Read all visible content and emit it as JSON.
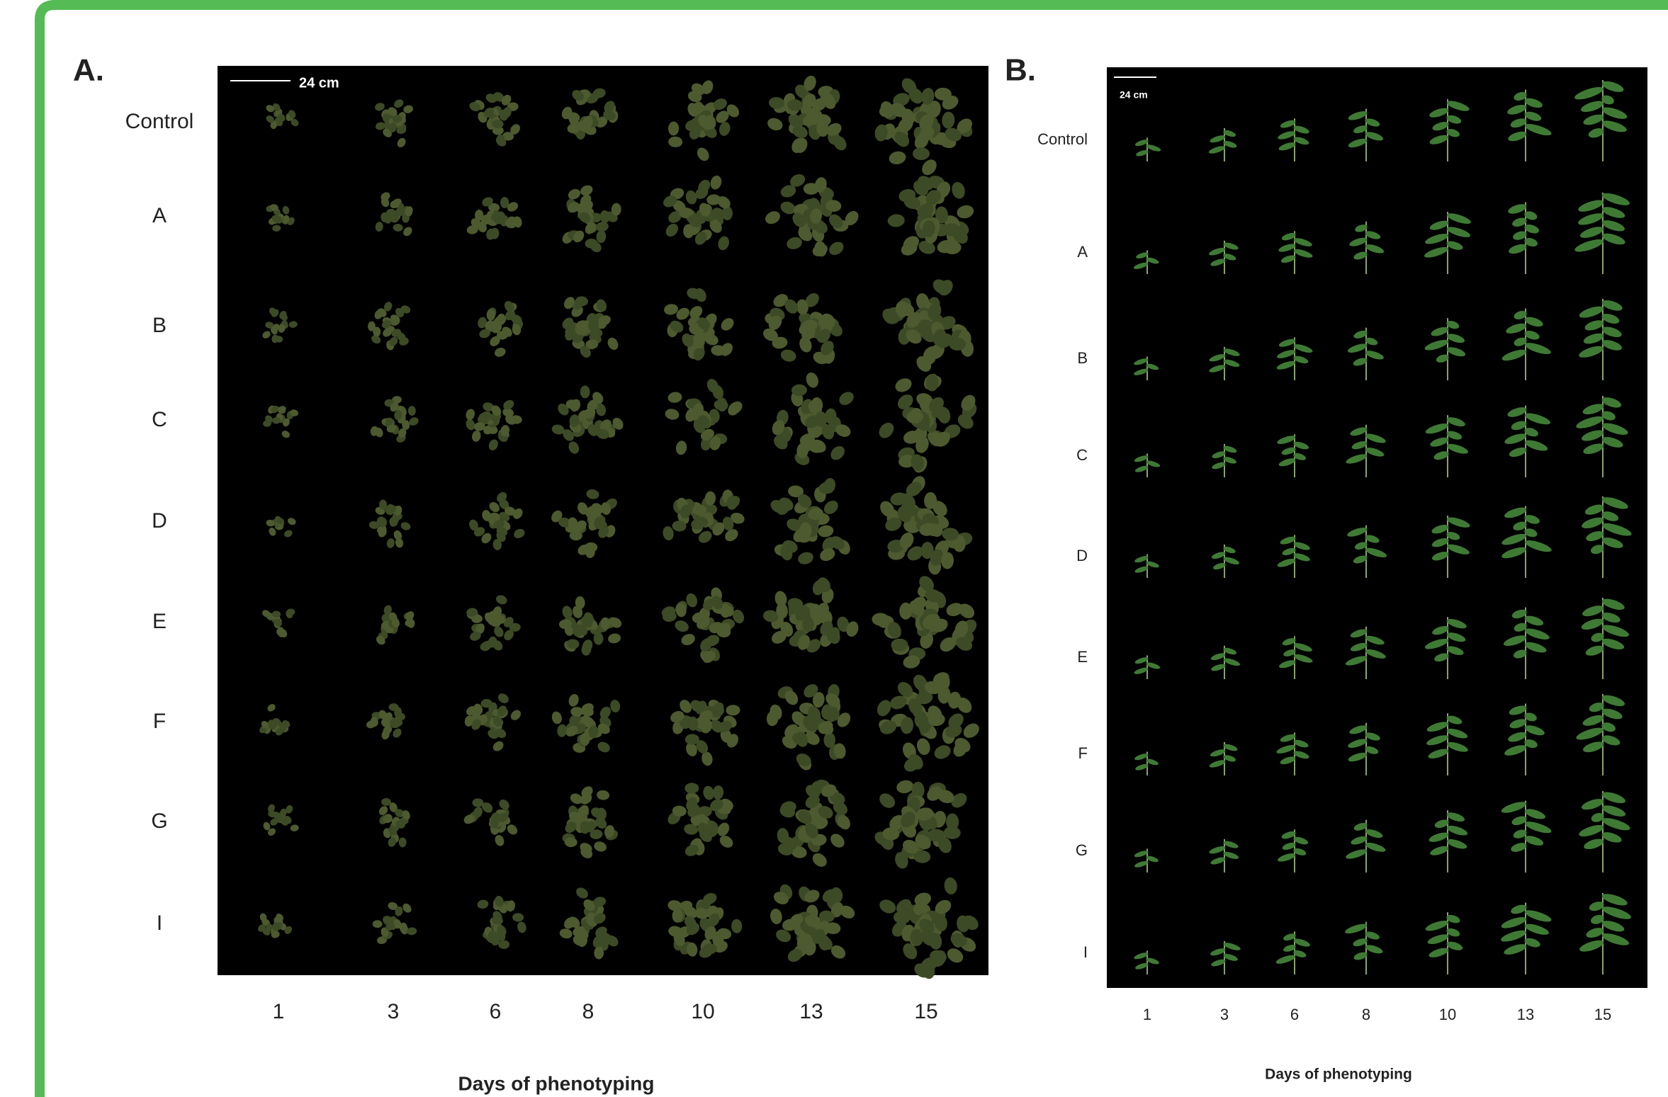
{
  "panels": [
    {
      "label": "A.",
      "scale_bar": "24 cm",
      "rows": [
        "Control",
        "A",
        "B",
        "C",
        "D",
        "E",
        "F",
        "G",
        "I"
      ],
      "columns": [
        "1",
        "3",
        "6",
        "8",
        "10",
        "13",
        "15"
      ],
      "x_title": "Days of phenotyping"
    },
    {
      "label": "B.",
      "scale_bar": "24 cm",
      "rows": [
        "Control",
        "A",
        "B",
        "C",
        "D",
        "E",
        "F",
        "G",
        "I"
      ],
      "columns": [
        "1",
        "3",
        "6",
        "8",
        "10",
        "13",
        "15"
      ],
      "x_title": "Days of phenotyping"
    }
  ]
}
